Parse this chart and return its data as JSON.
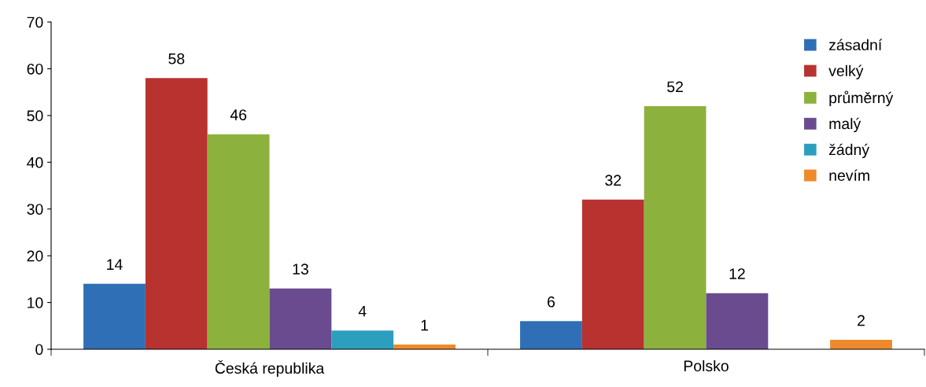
{
  "chart_data": {
    "type": "bar",
    "categories": [
      "Česká republika",
      "Polsko"
    ],
    "series": [
      {
        "name": "zásadní",
        "color": "#2f6fb5",
        "values": [
          14,
          6
        ]
      },
      {
        "name": "velký",
        "color": "#b8322f",
        "values": [
          58,
          32
        ]
      },
      {
        "name": "průměrný",
        "color": "#8cb13d",
        "values": [
          46,
          52
        ]
      },
      {
        "name": "malý",
        "color": "#6a4b8f",
        "values": [
          13,
          12
        ]
      },
      {
        "name": "žádný",
        "color": "#2b9fbd",
        "values": [
          4,
          null
        ]
      },
      {
        "name": "nevím",
        "color": "#ee8a2b",
        "values": [
          1,
          2
        ]
      }
    ],
    "ylim": [
      0,
      70
    ],
    "yticks": [
      0,
      10,
      20,
      30,
      40,
      50,
      60,
      70
    ],
    "grid": false,
    "legend": "top right",
    "data_labels": true
  }
}
